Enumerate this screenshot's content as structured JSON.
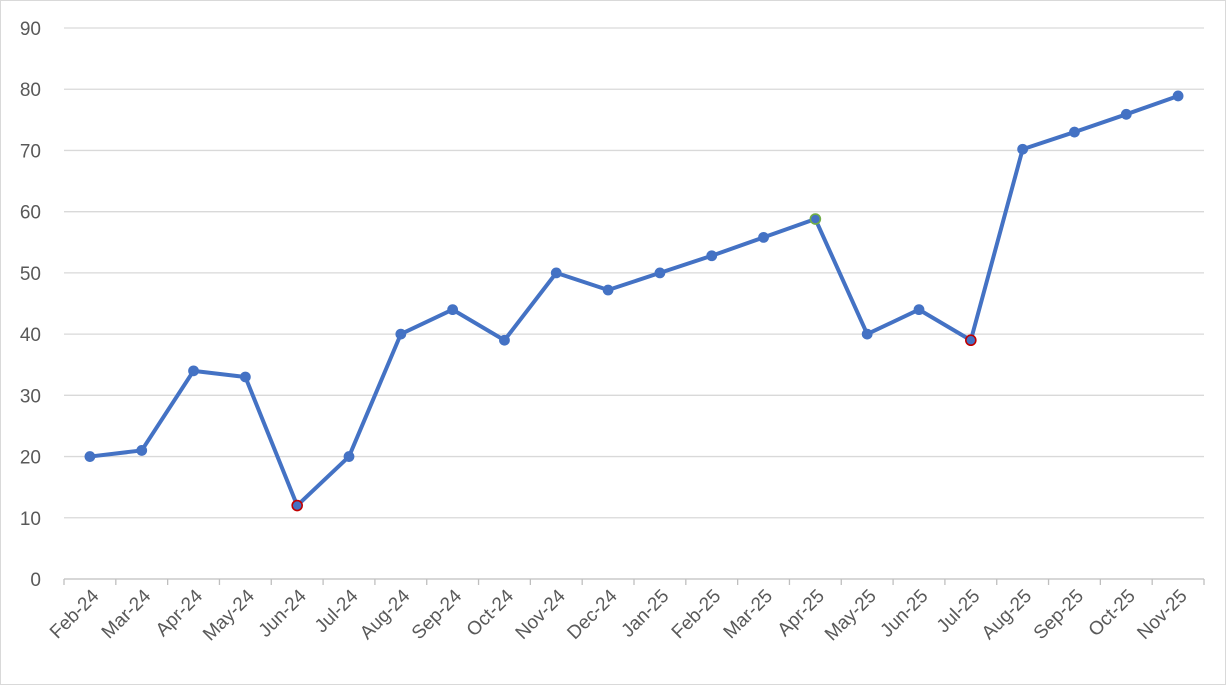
{
  "chart_data": {
    "type": "line",
    "title": "",
    "xlabel": "",
    "ylabel": "",
    "categories": [
      "Feb-24",
      "Mar-24",
      "Apr-24",
      "May-24",
      "Jun-24",
      "Jul-24",
      "Aug-24",
      "Sep-24",
      "Oct-24",
      "Nov-24",
      "Dec-24",
      "Jan-25",
      "Feb-25",
      "Mar-25",
      "Apr-25",
      "May-25",
      "Jun-25",
      "Jul-25",
      "Aug-25",
      "Sep-25",
      "Oct-25",
      "Nov-25"
    ],
    "series": [
      {
        "values": [
          20,
          21,
          34,
          33,
          12,
          20,
          40,
          44,
          39,
          50,
          47.2,
          50,
          52.8,
          55.8,
          58.8,
          40,
          44,
          39,
          70.2,
          73,
          75.9,
          78.9
        ],
        "color": "#4472c4"
      }
    ],
    "highlighted_points": [
      {
        "category": "Jun-24",
        "value": 12,
        "marker_color": "#c00000"
      },
      {
        "category": "Apr-25",
        "value": 58.8,
        "marker_color": "#70ad47"
      },
      {
        "category": "Jul-25",
        "value": 39,
        "marker_color": "#c00000"
      }
    ],
    "ylim": [
      0,
      90
    ],
    "yticks": [
      0,
      10,
      20,
      30,
      40,
      50,
      60,
      70,
      80,
      90
    ],
    "grid": true,
    "legend": "none",
    "colors": {
      "line": "#4472c4",
      "gridline": "#d9d9d9",
      "axis": "#bfbfbf",
      "tick_text": "#595959"
    }
  }
}
